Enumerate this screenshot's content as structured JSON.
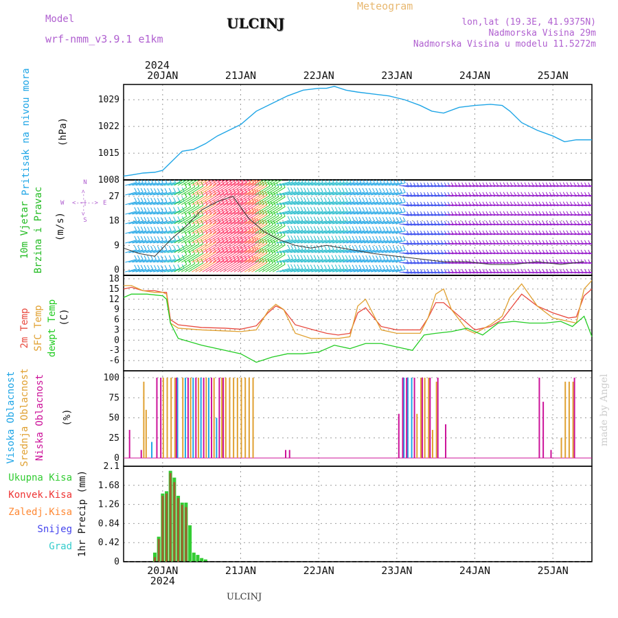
{
  "header": {
    "model_label": "Model",
    "model_name": "wrf-nmm_v3.9.1  e1km",
    "station": "ULCINJ",
    "meteogram": "Meteogram",
    "lonlat": "lon,lat (19.3E, 41.9375N)",
    "altitude": "Nadmorska Visina 29m",
    "model_altitude": "Nadmorska Visina u modelu 11.5272m",
    "footer_station": "ULCINJ",
    "credit": "made by Angel"
  },
  "colors": {
    "pressure": "#1ea5e6",
    "temp2m": "#e8493e",
    "sfc": "#e0a030",
    "dewpt": "#22cc22",
    "high_cloud": "#1ea5e6",
    "mid_cloud": "#e0a030",
    "low_cloud": "#cc1199",
    "precip_total": "#33cc33",
    "precip_conv": "#ee3333",
    "precip_frozen": "#ff8833",
    "snow": "#4444ee",
    "hail": "#33cccc",
    "model_label": "#b060d0",
    "meteogram": "#e8b870",
    "wind_left": "#22bb22",
    "wind_axis": "#b060d0"
  },
  "time_axis": {
    "top_year": "2024",
    "bottom_year": "2024",
    "ticks": [
      {
        "day": 1,
        "label": "20JAN"
      },
      {
        "day": 2,
        "label": "21JAN"
      },
      {
        "day": 3,
        "label": "22JAN"
      },
      {
        "day": 4,
        "label": "23JAN"
      },
      {
        "day": 5,
        "label": "24JAN"
      },
      {
        "day": 6,
        "label": "25JAN"
      }
    ]
  },
  "panels": {
    "pressure": {
      "label": "Pritisak na nivou mora",
      "unit": "(hPa)"
    },
    "wind": {
      "label1": "10m Vjetar",
      "label2": "Brzina i Pravac",
      "unit": "(m/s)",
      "compass_n": "N",
      "compass_s": "S",
      "compass_e": "E",
      "compass_w": "W",
      "compass_line": "<--|-->"
    },
    "temp": {
      "label1": "2m Temp",
      "label2": "SFC Temp",
      "label3": "dewpt Temp",
      "unit": "(C)"
    },
    "cloud": {
      "label1": "Visoka Oblacnost",
      "label2": "Srednja Oblacnost",
      "label3": "Niska Oblacnost",
      "unit": "(%)"
    },
    "precip": {
      "legend": [
        "Ukupna Kisa",
        "Konvek.Kisa",
        "Zaledj.Kisa",
        "Snijeg",
        "Grad"
      ],
      "unit": "1hr Precip (mm)"
    }
  },
  "chart_data": [
    {
      "type": "line",
      "title": "",
      "ylabel": "Pritisak na nivou mora (hPa)",
      "yticks": [
        1008,
        1015,
        1022,
        1029
      ],
      "ylim": [
        1008,
        1033
      ],
      "x_unit": "days from 19JAN 00Z",
      "series": [
        {
          "name": "Pritisak",
          "x": [
            0.5,
            0.6,
            0.75,
            0.9,
            1.0,
            1.1,
            1.25,
            1.4,
            1.55,
            1.7,
            1.85,
            2.0,
            2.2,
            2.4,
            2.6,
            2.8,
            3.0,
            3.1,
            3.2,
            3.35,
            3.5,
            3.7,
            3.9,
            4.1,
            4.3,
            4.45,
            4.6,
            4.8,
            5.0,
            5.2,
            5.35,
            5.45,
            5.6,
            5.8,
            6.0,
            6.15,
            6.3,
            6.5
          ],
          "values": [
            1009,
            1009.3,
            1009.8,
            1010,
            1010.5,
            1012.5,
            1015.5,
            1016,
            1017.5,
            1019.5,
            1021,
            1022.5,
            1026,
            1028,
            1030,
            1031.5,
            1032,
            1032,
            1032.5,
            1031.5,
            1031,
            1030.5,
            1030,
            1029,
            1027.5,
            1026,
            1025.5,
            1027,
            1027.5,
            1027.8,
            1027.5,
            1026,
            1023,
            1021,
            1019.5,
            1018,
            1018.5,
            1018.5
          ]
        }
      ]
    },
    {
      "type": "line",
      "title": "",
      "ylabel": "10m Vjetar Brzina i Pravac (m/s)",
      "yticks": [
        0,
        9,
        18,
        27
      ],
      "ylim": [
        -2,
        33
      ],
      "series": [
        {
          "name": "Brzina",
          "x": [
            0.5,
            0.7,
            0.9,
            1.1,
            1.3,
            1.5,
            1.7,
            1.9,
            2.1,
            2.3,
            2.5,
            2.7,
            2.9,
            3.1,
            3.3,
            3.5,
            3.7,
            4.0,
            4.3,
            4.6,
            4.9,
            5.2,
            5.5,
            5.8,
            6.1,
            6.4
          ],
          "values": [
            8,
            6,
            5,
            11,
            16,
            22,
            25,
            27,
            19,
            14,
            11,
            9,
            8,
            9,
            8,
            7,
            6,
            5,
            4,
            3,
            3,
            2,
            2,
            3,
            2,
            3
          ]
        }
      ]
    },
    {
      "type": "line",
      "title": "",
      "ylabel": "2m Temp / SFC Temp / dewpt Temp (C)",
      "yticks": [
        -6,
        -3,
        0,
        3,
        6,
        9,
        12,
        15,
        18
      ],
      "ylim": [
        -9,
        19
      ],
      "series": [
        {
          "name": "2m Temp",
          "x": [
            0.5,
            0.6,
            0.75,
            0.9,
            1.0,
            1.05,
            1.1,
            1.2,
            1.5,
            1.8,
            2.0,
            2.2,
            2.35,
            2.45,
            2.55,
            2.7,
            2.9,
            3.1,
            3.25,
            3.4,
            3.5,
            3.6,
            3.8,
            4.0,
            4.15,
            4.3,
            4.4,
            4.5,
            4.6,
            4.7,
            4.9,
            5.0,
            5.2,
            5.35,
            5.45,
            5.6,
            5.8,
            6.0,
            6.2,
            6.3,
            6.4,
            6.5
          ],
          "values": [
            15,
            15.5,
            14.5,
            14.5,
            14,
            14,
            6,
            4.5,
            3.7,
            3.5,
            3.2,
            4.2,
            8,
            10,
            9,
            4.5,
            3.2,
            2,
            1.5,
            2,
            8,
            9.5,
            4,
            3,
            3,
            3,
            6.5,
            11,
            11,
            9,
            5,
            3,
            4,
            6,
            9,
            13.5,
            10,
            8,
            6.5,
            6.8,
            13,
            15
          ]
        },
        {
          "name": "SFC Temp",
          "x": [
            0.5,
            0.6,
            0.75,
            0.9,
            1.0,
            1.05,
            1.1,
            1.2,
            1.5,
            1.8,
            2.0,
            2.2,
            2.35,
            2.45,
            2.55,
            2.7,
            2.9,
            3.1,
            3.25,
            3.4,
            3.5,
            3.6,
            3.8,
            4.0,
            4.15,
            4.3,
            4.4,
            4.5,
            4.6,
            4.7,
            4.9,
            5.0,
            5.2,
            5.35,
            5.45,
            5.6,
            5.8,
            6.0,
            6.2,
            6.3,
            6.4,
            6.5
          ],
          "values": [
            16,
            16,
            14.5,
            14,
            14,
            13.5,
            5,
            3.5,
            3,
            2.7,
            2.5,
            3,
            8.5,
            10.5,
            9,
            2,
            0.5,
            0.5,
            0.5,
            1,
            10,
            12,
            3,
            2,
            2,
            2,
            6.5,
            13.5,
            15,
            9,
            3,
            2,
            4.5,
            7,
            12.5,
            16.5,
            10,
            6.5,
            5.5,
            5,
            15,
            17.5
          ]
        },
        {
          "name": "dewpt Temp",
          "x": [
            0.5,
            0.6,
            0.8,
            1.0,
            1.05,
            1.1,
            1.2,
            1.5,
            1.8,
            2.0,
            2.2,
            2.4,
            2.6,
            2.8,
            3.0,
            3.2,
            3.4,
            3.6,
            3.8,
            4.0,
            4.2,
            4.35,
            4.5,
            4.7,
            4.9,
            5.1,
            5.3,
            5.5,
            5.7,
            5.9,
            6.1,
            6.25,
            6.4,
            6.5
          ],
          "values": [
            12.5,
            13.5,
            13.5,
            13,
            12,
            5,
            0.5,
            -1.5,
            -3,
            -4,
            -6.5,
            -5,
            -4,
            -4,
            -3.5,
            -1.5,
            -2.5,
            -1,
            -1,
            -2,
            -3,
            1.5,
            2,
            2.5,
            3.5,
            1.5,
            5,
            5.5,
            5,
            5,
            5.5,
            4,
            7,
            1
          ]
        }
      ]
    },
    {
      "type": "bar",
      "title": "",
      "ylabel": "Visoka / Srednja / Niska Oblacnost (%)",
      "yticks": [
        0,
        25,
        50,
        75,
        100
      ],
      "ylim": [
        0,
        100
      ],
      "series": [
        {
          "name": "Visoka Oblacnost",
          "x": [
            0.87,
            1.2,
            1.3,
            1.4,
            1.5,
            1.6,
            1.7,
            4.1,
            4.15,
            4.2
          ],
          "values": [
            20,
            100,
            100,
            100,
            100,
            100,
            50,
            100,
            100,
            100
          ]
        },
        {
          "name": "Srednja Oblacnost",
          "x": [
            0.75,
            0.78,
            1.0,
            1.05,
            1.1,
            1.15,
            1.25,
            1.35,
            1.45,
            1.55,
            1.65,
            1.75,
            1.8,
            1.85,
            1.9,
            1.95,
            2.0,
            2.05,
            2.1,
            2.15,
            4.25,
            4.3,
            4.35,
            4.4,
            4.45,
            4.5,
            6.1,
            6.15,
            6.2,
            6.25
          ],
          "values": [
            95,
            60,
            100,
            100,
            100,
            100,
            100,
            100,
            100,
            100,
            100,
            100,
            100,
            100,
            100,
            100,
            100,
            100,
            100,
            100,
            55,
            100,
            100,
            100,
            35,
            95,
            25,
            95,
            95,
            95
          ]
        },
        {
          "name": "Niska Oblacnost",
          "x": [
            0.55,
            0.7,
            0.9,
            0.95,
            1.15,
            1.3,
            1.4,
            1.5,
            1.6,
            1.7,
            1.75,
            2.55,
            2.6,
            4.0,
            4.05,
            4.1,
            4.2,
            4.3,
            4.4,
            4.5,
            4.6,
            5.8,
            5.85,
            5.95,
            6.25
          ],
          "values": [
            35,
            10,
            100,
            100,
            100,
            100,
            100,
            100,
            100,
            100,
            100,
            10,
            10,
            55,
            100,
            100,
            100,
            100,
            100,
            100,
            42,
            100,
            70,
            10,
            100
          ]
        }
      ]
    },
    {
      "type": "bar",
      "title": "",
      "ylabel": "1hr Precip (mm)",
      "yticks": [
        0,
        0.42,
        0.84,
        1.26,
        1.68,
        2.1
      ],
      "ylim": [
        0,
        2.1
      ],
      "series": [
        {
          "name": "Ukupna Kisa",
          "x": [
            0.9,
            0.95,
            1.0,
            1.05,
            1.1,
            1.15,
            1.2,
            1.25,
            1.3,
            1.35,
            1.4,
            1.45,
            1.5,
            1.55
          ],
          "values": [
            0.2,
            0.55,
            1.5,
            1.55,
            2.0,
            1.85,
            1.45,
            1.3,
            1.3,
            0.8,
            0.2,
            0.15,
            0.08,
            0.05
          ]
        },
        {
          "name": "Konvek.Kisa",
          "x": [
            0.9,
            0.95,
            1.0,
            1.05,
            1.1,
            1.15,
            1.2,
            1.25,
            1.3
          ],
          "values": [
            0.1,
            0.5,
            1.45,
            1.5,
            1.95,
            1.75,
            1.4,
            1.25,
            1.2
          ]
        }
      ]
    }
  ]
}
